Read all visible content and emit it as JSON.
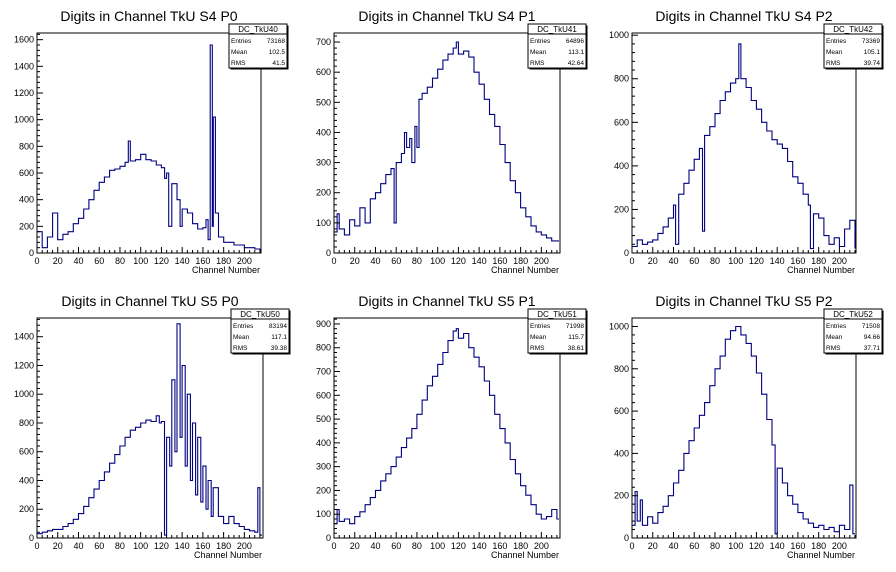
{
  "chart_data": [
    {
      "type": "histogram",
      "title": "Digits in Channel TkU S4 P0",
      "xlabel": "Channel Number",
      "xlim": [
        0,
        216
      ],
      "ylim": [
        0,
        1650
      ],
      "xticks": [
        0,
        20,
        40,
        60,
        80,
        100,
        120,
        140,
        160,
        180,
        200
      ],
      "yticks": [
        200,
        400,
        600,
        800,
        1000,
        1200,
        1400,
        1600
      ],
      "stats": {
        "name": "DC_TkU40",
        "entries": "73168",
        "mean": "102.5",
        "rms": "41.5"
      },
      "points": [
        [
          0,
          160
        ],
        [
          5,
          40
        ],
        [
          10,
          120
        ],
        [
          15,
          300
        ],
        [
          20,
          100
        ],
        [
          25,
          140
        ],
        [
          30,
          160
        ],
        [
          35,
          220
        ],
        [
          40,
          260
        ],
        [
          45,
          330
        ],
        [
          50,
          400
        ],
        [
          55,
          470
        ],
        [
          60,
          530
        ],
        [
          65,
          570
        ],
        [
          70,
          620
        ],
        [
          75,
          630
        ],
        [
          80,
          650
        ],
        [
          85,
          680
        ],
        [
          88,
          840
        ],
        [
          90,
          690
        ],
        [
          95,
          700
        ],
        [
          100,
          740
        ],
        [
          105,
          700
        ],
        [
          110,
          690
        ],
        [
          115,
          660
        ],
        [
          120,
          640
        ],
        [
          123,
          560
        ],
        [
          125,
          600
        ],
        [
          127,
          200
        ],
        [
          130,
          520
        ],
        [
          135,
          400
        ],
        [
          138,
          200
        ],
        [
          140,
          330
        ],
        [
          145,
          300
        ],
        [
          150,
          220
        ],
        [
          155,
          180
        ],
        [
          160,
          190
        ],
        [
          163,
          250
        ],
        [
          165,
          100
        ],
        [
          167,
          1560
        ],
        [
          169,
          200
        ],
        [
          170,
          1020
        ],
        [
          172,
          300
        ],
        [
          175,
          120
        ],
        [
          180,
          80
        ],
        [
          190,
          60
        ],
        [
          200,
          40
        ],
        [
          210,
          30
        ],
        [
          215,
          20
        ]
      ]
    },
    {
      "type": "histogram",
      "title": "Digits in Channel TkU S4 P1",
      "xlabel": "Channel Number",
      "xlim": [
        0,
        218
      ],
      "ylim": [
        0,
        730
      ],
      "xticks": [
        0,
        20,
        40,
        60,
        80,
        100,
        120,
        140,
        160,
        180,
        200
      ],
      "yticks": [
        100,
        200,
        300,
        400,
        500,
        600,
        700
      ],
      "stats": {
        "name": "DC_TkU41",
        "entries": "64896",
        "mean": "113.1",
        "rms": "42.64"
      },
      "points": [
        [
          0,
          70
        ],
        [
          3,
          130
        ],
        [
          5,
          80
        ],
        [
          10,
          60
        ],
        [
          15,
          110
        ],
        [
          20,
          90
        ],
        [
          25,
          150
        ],
        [
          30,
          100
        ],
        [
          35,
          180
        ],
        [
          40,
          200
        ],
        [
          45,
          230
        ],
        [
          50,
          260
        ],
        [
          55,
          280
        ],
        [
          58,
          100
        ],
        [
          60,
          300
        ],
        [
          65,
          330
        ],
        [
          68,
          400
        ],
        [
          70,
          350
        ],
        [
          73,
          380
        ],
        [
          75,
          300
        ],
        [
          78,
          420
        ],
        [
          80,
          350
        ],
        [
          82,
          510
        ],
        [
          85,
          530
        ],
        [
          90,
          550
        ],
        [
          95,
          580
        ],
        [
          100,
          610
        ],
        [
          105,
          640
        ],
        [
          110,
          660
        ],
        [
          115,
          680
        ],
        [
          118,
          700
        ],
        [
          120,
          660
        ],
        [
          125,
          670
        ],
        [
          130,
          650
        ],
        [
          135,
          600
        ],
        [
          140,
          560
        ],
        [
          145,
          510
        ],
        [
          150,
          460
        ],
        [
          155,
          420
        ],
        [
          160,
          360
        ],
        [
          165,
          300
        ],
        [
          170,
          240
        ],
        [
          175,
          200
        ],
        [
          180,
          150
        ],
        [
          185,
          120
        ],
        [
          190,
          90
        ],
        [
          195,
          70
        ],
        [
          200,
          60
        ],
        [
          205,
          50
        ],
        [
          210,
          40
        ],
        [
          215,
          40
        ]
      ]
    },
    {
      "type": "histogram",
      "title": "Digits in Channel TkU S4 P2",
      "xlabel": "Channel Number",
      "xlim": [
        0,
        216
      ],
      "ylim": [
        0,
        1010
      ],
      "xticks": [
        0,
        20,
        40,
        60,
        80,
        100,
        120,
        140,
        160,
        180,
        200
      ],
      "yticks": [
        200,
        400,
        600,
        800,
        1000
      ],
      "stats": {
        "name": "DC_TkU42",
        "entries": "73369",
        "mean": "105.1",
        "rms": "39.74"
      },
      "points": [
        [
          0,
          30
        ],
        [
          5,
          60
        ],
        [
          10,
          40
        ],
        [
          15,
          50
        ],
        [
          20,
          60
        ],
        [
          25,
          90
        ],
        [
          30,
          120
        ],
        [
          35,
          160
        ],
        [
          40,
          220
        ],
        [
          42,
          40
        ],
        [
          45,
          270
        ],
        [
          50,
          320
        ],
        [
          55,
          380
        ],
        [
          60,
          430
        ],
        [
          65,
          480
        ],
        [
          68,
          100
        ],
        [
          70,
          540
        ],
        [
          75,
          580
        ],
        [
          80,
          640
        ],
        [
          85,
          700
        ],
        [
          90,
          740
        ],
        [
          95,
          780
        ],
        [
          100,
          800
        ],
        [
          103,
          960
        ],
        [
          105,
          800
        ],
        [
          110,
          760
        ],
        [
          115,
          700
        ],
        [
          120,
          660
        ],
        [
          125,
          600
        ],
        [
          130,
          560
        ],
        [
          135,
          520
        ],
        [
          140,
          500
        ],
        [
          145,
          480
        ],
        [
          150,
          420
        ],
        [
          155,
          350
        ],
        [
          160,
          320
        ],
        [
          165,
          270
        ],
        [
          170,
          220
        ],
        [
          172,
          20
        ],
        [
          175,
          180
        ],
        [
          180,
          160
        ],
        [
          185,
          80
        ],
        [
          190,
          40
        ],
        [
          195,
          70
        ],
        [
          200,
          30
        ],
        [
          205,
          110
        ],
        [
          210,
          150
        ],
        [
          215,
          20
        ]
      ]
    },
    {
      "type": "histogram",
      "title": "Digits in Channel TkU S5 P0",
      "xlabel": "Channel Number",
      "xlim": [
        0,
        218
      ],
      "ylim": [
        0,
        1530
      ],
      "xticks": [
        0,
        20,
        40,
        60,
        80,
        100,
        120,
        140,
        160,
        180,
        200
      ],
      "yticks": [
        200,
        400,
        600,
        800,
        1000,
        1200,
        1400
      ],
      "stats": {
        "name": "DC_TkU50",
        "entries": "83194",
        "mean": "117.1",
        "rms": "39.38"
      },
      "points": [
        [
          0,
          30
        ],
        [
          5,
          40
        ],
        [
          10,
          50
        ],
        [
          15,
          60
        ],
        [
          20,
          60
        ],
        [
          25,
          80
        ],
        [
          30,
          100
        ],
        [
          35,
          130
        ],
        [
          40,
          170
        ],
        [
          45,
          220
        ],
        [
          50,
          280
        ],
        [
          55,
          340
        ],
        [
          60,
          400
        ],
        [
          65,
          460
        ],
        [
          70,
          520
        ],
        [
          75,
          580
        ],
        [
          80,
          640
        ],
        [
          85,
          700
        ],
        [
          90,
          750
        ],
        [
          95,
          770
        ],
        [
          100,
          800
        ],
        [
          105,
          820
        ],
        [
          110,
          810
        ],
        [
          115,
          850
        ],
        [
          118,
          800
        ],
        [
          120,
          810
        ],
        [
          123,
          20
        ],
        [
          125,
          700
        ],
        [
          128,
          500
        ],
        [
          130,
          1100
        ],
        [
          133,
          600
        ],
        [
          135,
          1490
        ],
        [
          138,
          700
        ],
        [
          140,
          1200
        ],
        [
          143,
          500
        ],
        [
          145,
          1000
        ],
        [
          148,
          400
        ],
        [
          150,
          800
        ],
        [
          153,
          300
        ],
        [
          155,
          700
        ],
        [
          158,
          250
        ],
        [
          160,
          500
        ],
        [
          163,
          200
        ],
        [
          165,
          400
        ],
        [
          168,
          150
        ],
        [
          170,
          350
        ],
        [
          175,
          150
        ],
        [
          180,
          100
        ],
        [
          185,
          150
        ],
        [
          190,
          100
        ],
        [
          195,
          80
        ],
        [
          200,
          60
        ],
        [
          205,
          50
        ],
        [
          210,
          40
        ],
        [
          213,
          350
        ],
        [
          215,
          20
        ]
      ]
    },
    {
      "type": "histogram",
      "title": "Digits in Channel TkU S5 P1",
      "xlabel": "Channel Number",
      "xlim": [
        0,
        218
      ],
      "ylim": [
        0,
        925
      ],
      "xticks": [
        0,
        20,
        40,
        60,
        80,
        100,
        120,
        140,
        160,
        180,
        200
      ],
      "yticks": [
        100,
        200,
        300,
        400,
        500,
        600,
        700,
        800,
        900
      ],
      "stats": {
        "name": "DC_TkU51",
        "entries": "71998",
        "mean": "115.7",
        "rms": "38.61"
      },
      "points": [
        [
          0,
          60
        ],
        [
          3,
          120
        ],
        [
          5,
          70
        ],
        [
          10,
          80
        ],
        [
          15,
          60
        ],
        [
          20,
          90
        ],
        [
          25,
          110
        ],
        [
          30,
          140
        ],
        [
          35,
          170
        ],
        [
          40,
          200
        ],
        [
          45,
          240
        ],
        [
          50,
          270
        ],
        [
          55,
          300
        ],
        [
          60,
          340
        ],
        [
          65,
          380
        ],
        [
          70,
          420
        ],
        [
          75,
          460
        ],
        [
          80,
          520
        ],
        [
          85,
          580
        ],
        [
          90,
          640
        ],
        [
          95,
          680
        ],
        [
          100,
          730
        ],
        [
          105,
          780
        ],
        [
          110,
          830
        ],
        [
          115,
          870
        ],
        [
          118,
          880
        ],
        [
          120,
          840
        ],
        [
          125,
          860
        ],
        [
          130,
          800
        ],
        [
          135,
          760
        ],
        [
          140,
          720
        ],
        [
          145,
          660
        ],
        [
          150,
          600
        ],
        [
          155,
          520
        ],
        [
          160,
          460
        ],
        [
          165,
          400
        ],
        [
          170,
          330
        ],
        [
          175,
          270
        ],
        [
          180,
          220
        ],
        [
          185,
          180
        ],
        [
          190,
          140
        ],
        [
          195,
          100
        ],
        [
          200,
          80
        ],
        [
          205,
          90
        ],
        [
          210,
          120
        ],
        [
          215,
          80
        ]
      ]
    },
    {
      "type": "histogram",
      "title": "Digits in Channel TkU S5 P2",
      "xlabel": "Channel Number",
      "xlim": [
        0,
        216
      ],
      "ylim": [
        0,
        1040
      ],
      "xticks": [
        0,
        20,
        40,
        60,
        80,
        100,
        120,
        140,
        160,
        180,
        200
      ],
      "yticks": [
        200,
        400,
        600,
        800,
        1000
      ],
      "stats": {
        "name": "DC_TkU52",
        "entries": "71508",
        "mean": "94.66",
        "rms": "37.71"
      },
      "points": [
        [
          0,
          60
        ],
        [
          3,
          220
        ],
        [
          5,
          80
        ],
        [
          8,
          180
        ],
        [
          10,
          60
        ],
        [
          15,
          100
        ],
        [
          20,
          70
        ],
        [
          25,
          120
        ],
        [
          30,
          150
        ],
        [
          35,
          200
        ],
        [
          40,
          260
        ],
        [
          45,
          320
        ],
        [
          50,
          400
        ],
        [
          55,
          460
        ],
        [
          60,
          520
        ],
        [
          65,
          580
        ],
        [
          70,
          640
        ],
        [
          75,
          720
        ],
        [
          80,
          800
        ],
        [
          85,
          860
        ],
        [
          90,
          940
        ],
        [
          95,
          980
        ],
        [
          100,
          1000
        ],
        [
          105,
          960
        ],
        [
          110,
          920
        ],
        [
          115,
          860
        ],
        [
          120,
          780
        ],
        [
          125,
          680
        ],
        [
          130,
          560
        ],
        [
          135,
          440
        ],
        [
          138,
          20
        ],
        [
          140,
          330
        ],
        [
          145,
          260
        ],
        [
          150,
          200
        ],
        [
          155,
          160
        ],
        [
          160,
          120
        ],
        [
          165,
          90
        ],
        [
          170,
          70
        ],
        [
          175,
          50
        ],
        [
          180,
          60
        ],
        [
          185,
          40
        ],
        [
          190,
          50
        ],
        [
          195,
          30
        ],
        [
          200,
          60
        ],
        [
          205,
          40
        ],
        [
          210,
          250
        ],
        [
          213,
          20
        ]
      ]
    }
  ]
}
